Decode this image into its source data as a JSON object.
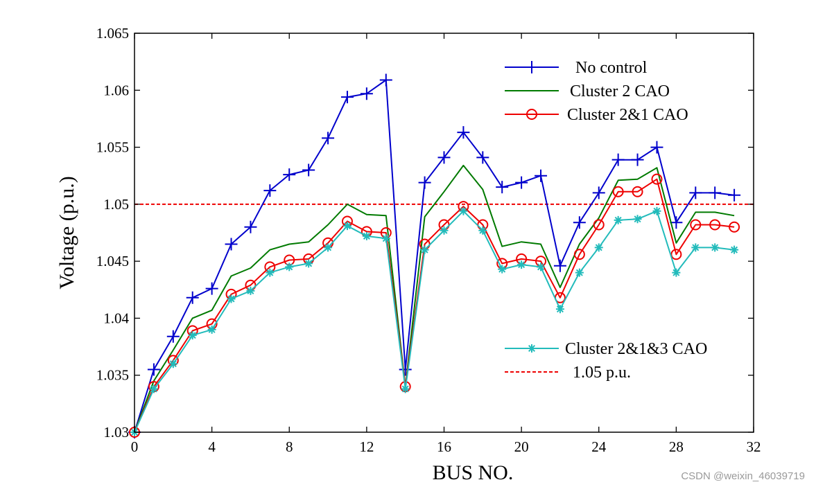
{
  "chart_data": {
    "type": "line",
    "title": "",
    "xlabel": "BUS NO.",
    "ylabel": "Voltage (p.u.)",
    "xlim": [
      0,
      32
    ],
    "ylim": [
      1.03,
      1.065
    ],
    "xticks": [
      0,
      4,
      8,
      12,
      16,
      20,
      24,
      28,
      32
    ],
    "yticks": [
      1.03,
      1.035,
      1.04,
      1.045,
      1.05,
      1.055,
      1.06,
      1.065
    ],
    "ytick_labels": [
      "1.03",
      "1.035",
      "1.04",
      "1.045",
      "1.05",
      "1.055",
      "1.06",
      "1.065"
    ],
    "grid": false,
    "legend_position": "top-right",
    "x": [
      0,
      1,
      2,
      3,
      4,
      5,
      6,
      7,
      8,
      9,
      10,
      11,
      12,
      13,
      14,
      15,
      16,
      17,
      18,
      19,
      20,
      21,
      22,
      23,
      24,
      25,
      26,
      27,
      28,
      29,
      30,
      31
    ],
    "series": [
      {
        "name": "No control",
        "color": "#0000cc",
        "marker": "plus",
        "values": [
          1.03,
          1.0355,
          1.0384,
          1.0418,
          1.0426,
          1.0465,
          1.048,
          1.0512,
          1.0526,
          1.053,
          1.0558,
          1.0594,
          1.0597,
          1.0609,
          1.0355,
          1.0519,
          1.0541,
          1.0563,
          1.0541,
          1.0515,
          1.0519,
          1.0525,
          1.0446,
          1.0484,
          1.051,
          1.0539,
          1.0539,
          1.055,
          1.0484,
          1.051,
          1.051,
          1.0508
        ]
      },
      {
        "name": "Cluster 2 CAO",
        "color": "#007a00",
        "marker": "none",
        "values": [
          1.03,
          1.0345,
          1.0372,
          1.04,
          1.0407,
          1.0437,
          1.0444,
          1.046,
          1.0465,
          1.0467,
          1.0482,
          1.05,
          1.0491,
          1.049,
          1.034,
          1.0489,
          1.0511,
          1.0534,
          1.0513,
          1.0463,
          1.0467,
          1.0465,
          1.0427,
          1.0465,
          1.0488,
          1.0521,
          1.0522,
          1.0532,
          1.0466,
          1.0493,
          1.0493,
          1.049
        ]
      },
      {
        "name": "Cluster 2&1 CAO",
        "color": "#ee0000",
        "marker": "circle",
        "values": [
          1.03,
          1.034,
          1.0363,
          1.0389,
          1.0395,
          1.0421,
          1.0429,
          1.0445,
          1.0451,
          1.0452,
          1.0466,
          1.0485,
          1.0476,
          1.0475,
          1.034,
          1.0465,
          1.0482,
          1.0498,
          1.0482,
          1.0448,
          1.0452,
          1.045,
          1.0418,
          1.0456,
          1.0482,
          1.0511,
          1.0511,
          1.0522,
          1.0456,
          1.0482,
          1.0482,
          1.048
        ]
      },
      {
        "name": "Cluster 2&1&3 CAO",
        "color": "#22bbbb",
        "marker": "asterisk",
        "values": [
          1.03,
          1.0338,
          1.036,
          1.0385,
          1.039,
          1.0417,
          1.0424,
          1.044,
          1.0445,
          1.0448,
          1.0462,
          1.0481,
          1.0472,
          1.047,
          1.0338,
          1.046,
          1.0477,
          1.0494,
          1.0477,
          1.0443,
          1.0447,
          1.0445,
          1.0408,
          1.044,
          1.0462,
          1.0486,
          1.0487,
          1.0494,
          1.044,
          1.0462,
          1.0462,
          1.046
        ]
      },
      {
        "name": "1.05 p.u.",
        "color": "#ee0000",
        "marker": "none",
        "line_style": "dashed",
        "x": [
          0,
          32
        ],
        "values": [
          1.05,
          1.05
        ]
      }
    ]
  },
  "watermark": "CSDN @weixin_46039719"
}
